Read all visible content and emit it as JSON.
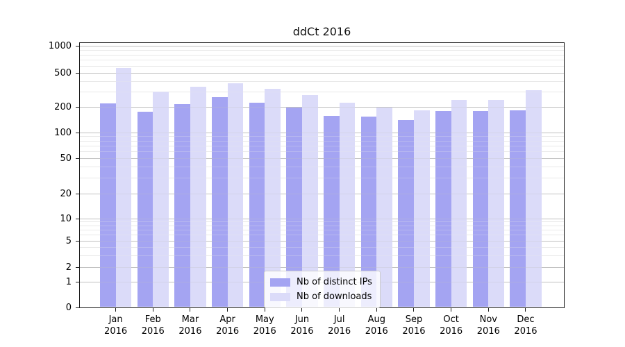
{
  "chart_data": {
    "type": "bar",
    "title": "ddCt 2016",
    "categories": [
      "Jan",
      "Feb",
      "Mar",
      "Apr",
      "May",
      "Jun",
      "Jul",
      "Aug",
      "Sep",
      "Oct",
      "Nov",
      "Dec"
    ],
    "year": "2016",
    "series": [
      {
        "name": "Nb of distinct IPs",
        "color": "#a4a4f2",
        "values": [
          218,
          175,
          216,
          260,
          222,
          198,
          156,
          154,
          139,
          180,
          178,
          181
        ]
      },
      {
        "name": "Nb of downloads",
        "color": "#dbdbf9",
        "values": [
          570,
          305,
          345,
          383,
          326,
          276,
          222,
          196,
          181,
          240,
          242,
          313
        ]
      }
    ],
    "y_ticks": [
      0,
      1,
      2,
      5,
      10,
      20,
      50,
      100,
      200,
      500,
      1000
    ],
    "y_scale": "symlog",
    "ylim": [
      0,
      1000
    ],
    "xlabel": "",
    "ylabel": "",
    "grid": "horizontal major and minor gridlines",
    "legend_position": "lower center"
  }
}
